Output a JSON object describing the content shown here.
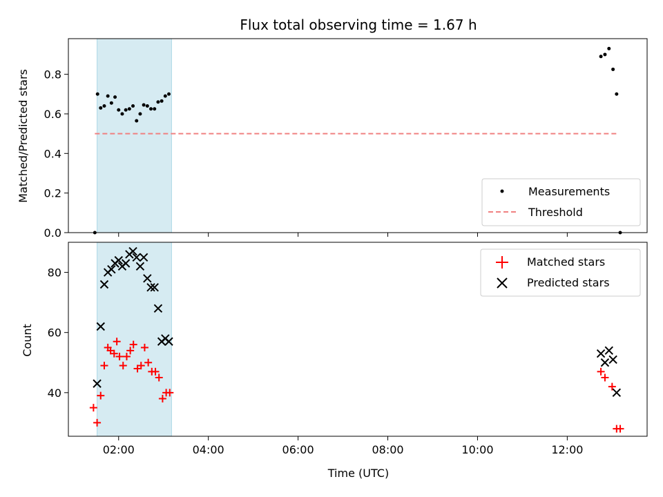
{
  "chart_data": {
    "type": "scatter",
    "title": "Flux total observing time = 1.67 h",
    "xlabel": "Time (UTC)",
    "x_unit": "hours UTC",
    "xlim": [
      0.88,
      13.78
    ],
    "x_ticks": [
      {
        "value": 2,
        "label": "02:00"
      },
      {
        "value": 4,
        "label": "04:00"
      },
      {
        "value": 6,
        "label": "06:00"
      },
      {
        "value": 8,
        "label": "08:00"
      },
      {
        "value": 10,
        "label": "10:00"
      },
      {
        "value": 12,
        "label": "12:00"
      }
    ],
    "shaded_interval": {
      "x_start": 1.52,
      "x_end": 3.18,
      "color": "#add8e6"
    },
    "top_panel": {
      "ylabel": "Matched/Predicted stars",
      "ylim": [
        0,
        0.98
      ],
      "y_ticks": [
        0.0,
        0.2,
        0.4,
        0.6,
        0.8
      ],
      "legend_position": "lower-right",
      "series": [
        {
          "name": "Measurements",
          "marker": "dot",
          "color": "#000000",
          "points": [
            [
              1.47,
              0.0
            ],
            [
              1.53,
              0.7
            ],
            [
              1.6,
              0.63
            ],
            [
              1.68,
              0.64
            ],
            [
              1.76,
              0.69
            ],
            [
              1.84,
              0.655
            ],
            [
              1.92,
              0.685
            ],
            [
              2.0,
              0.62
            ],
            [
              2.08,
              0.6
            ],
            [
              2.16,
              0.62
            ],
            [
              2.24,
              0.625
            ],
            [
              2.32,
              0.64
            ],
            [
              2.4,
              0.565
            ],
            [
              2.48,
              0.6
            ],
            [
              2.56,
              0.645
            ],
            [
              2.64,
              0.64
            ],
            [
              2.72,
              0.625
            ],
            [
              2.8,
              0.625
            ],
            [
              2.88,
              0.66
            ],
            [
              2.96,
              0.665
            ],
            [
              3.04,
              0.69
            ],
            [
              3.12,
              0.7
            ],
            [
              12.75,
              0.89
            ],
            [
              12.84,
              0.9
            ],
            [
              12.93,
              0.93
            ],
            [
              13.02,
              0.825
            ],
            [
              13.1,
              0.7
            ],
            [
              13.18,
              0.0
            ]
          ]
        },
        {
          "name": "Threshold",
          "line_style": "dashed",
          "color": "#f08080",
          "points": [
            [
              1.47,
              0.5
            ],
            [
              13.1,
              0.5
            ]
          ]
        }
      ]
    },
    "bottom_panel": {
      "ylabel": "Count",
      "ylim": [
        25.5,
        90
      ],
      "y_ticks": [
        40,
        60,
        80
      ],
      "legend_position": "top-right",
      "series": [
        {
          "name": "Matched stars",
          "marker": "plus",
          "color": "#ff0000",
          "points": [
            [
              1.44,
              35
            ],
            [
              1.52,
              30
            ],
            [
              1.6,
              39
            ],
            [
              1.68,
              49
            ],
            [
              1.76,
              55
            ],
            [
              1.82,
              54
            ],
            [
              1.9,
              53
            ],
            [
              1.96,
              57
            ],
            [
              2.02,
              52
            ],
            [
              2.1,
              49
            ],
            [
              2.18,
              52
            ],
            [
              2.26,
              54
            ],
            [
              2.33,
              56
            ],
            [
              2.42,
              48
            ],
            [
              2.5,
              49
            ],
            [
              2.58,
              55
            ],
            [
              2.66,
              50
            ],
            [
              2.74,
              47
            ],
            [
              2.82,
              47
            ],
            [
              2.9,
              45
            ],
            [
              2.98,
              38
            ],
            [
              3.06,
              40
            ],
            [
              3.14,
              40
            ],
            [
              12.75,
              47
            ],
            [
              12.84,
              45
            ],
            [
              13.0,
              42
            ],
            [
              13.1,
              28
            ],
            [
              13.18,
              28
            ]
          ]
        },
        {
          "name": "Predicted stars",
          "marker": "x",
          "color": "#000000",
          "points": [
            [
              1.52,
              43
            ],
            [
              1.6,
              62
            ],
            [
              1.68,
              76
            ],
            [
              1.76,
              80
            ],
            [
              1.84,
              81
            ],
            [
              1.92,
              83
            ],
            [
              2.0,
              84
            ],
            [
              2.08,
              82
            ],
            [
              2.16,
              83
            ],
            [
              2.24,
              86
            ],
            [
              2.32,
              87
            ],
            [
              2.4,
              85
            ],
            [
              2.48,
              82
            ],
            [
              2.56,
              85
            ],
            [
              2.64,
              78
            ],
            [
              2.72,
              75
            ],
            [
              2.8,
              75
            ],
            [
              2.88,
              68
            ],
            [
              2.96,
              57
            ],
            [
              3.04,
              58
            ],
            [
              3.12,
              57
            ],
            [
              12.75,
              53
            ],
            [
              12.84,
              50
            ],
            [
              12.93,
              54
            ],
            [
              13.02,
              51
            ],
            [
              13.1,
              40
            ]
          ]
        }
      ]
    }
  }
}
